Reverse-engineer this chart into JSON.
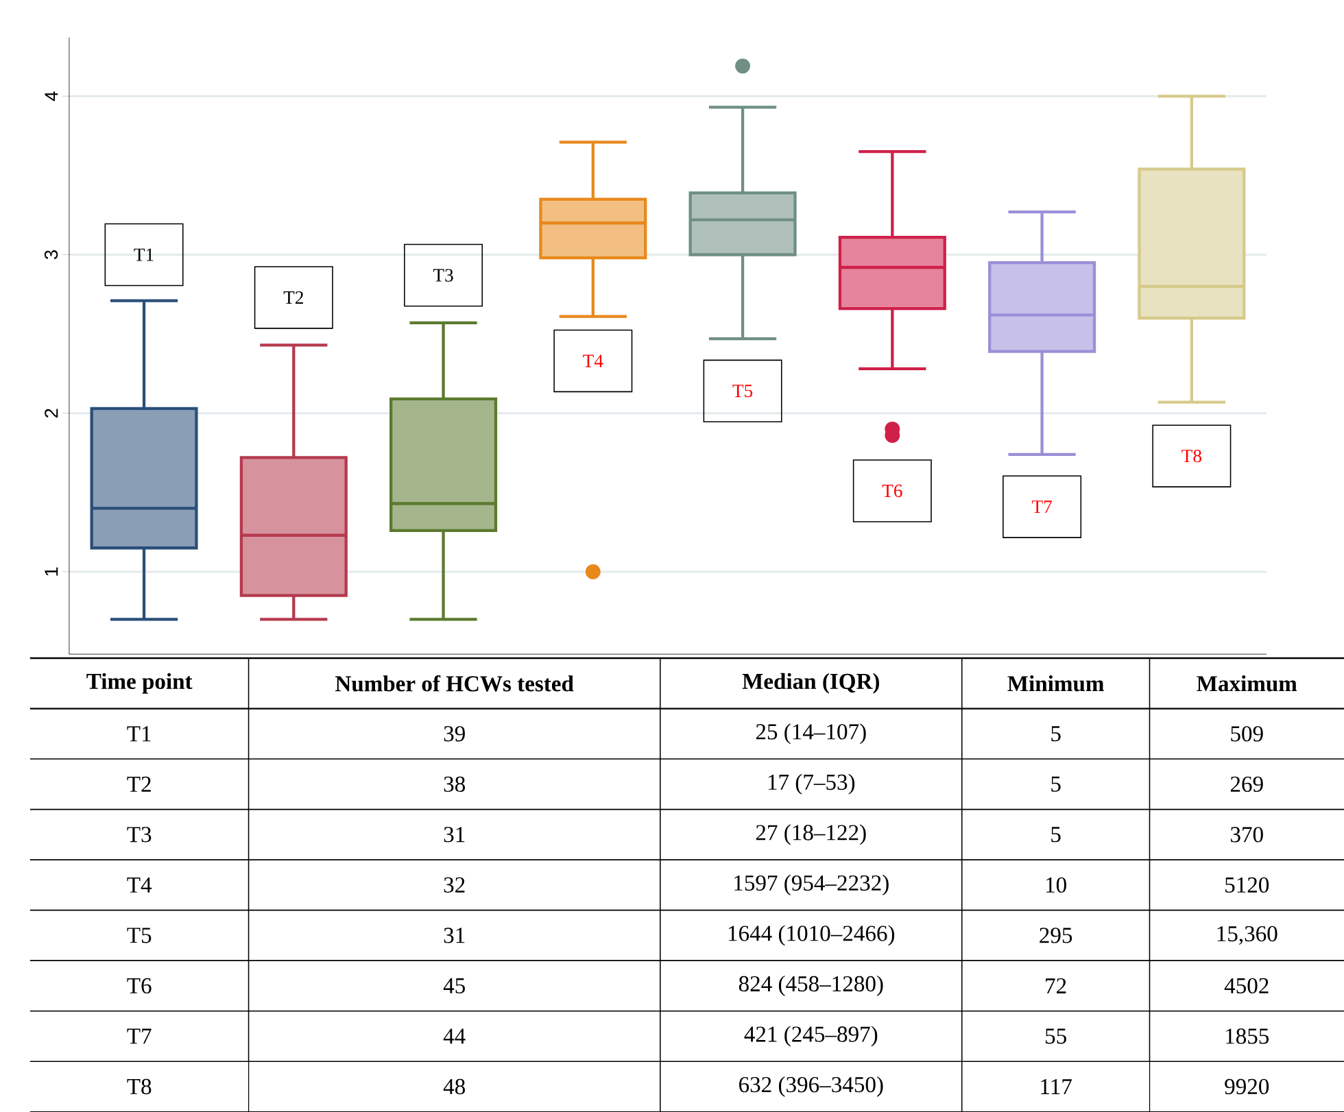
{
  "chart_data": {
    "type": "box",
    "categories": [
      null,
      null,
      null,
      null,
      null,
      null,
      null,
      null
    ],
    "colors": [
      "#2a4f7a",
      "#b53a4e",
      "#5b7a2f",
      "#e8891c",
      "#6f8f85",
      "#d0204a",
      "#9a8fd8",
      "#d6ca8c"
    ],
    "boxes": [
      {
        "low": 0.7,
        "q1": 1.15,
        "median": 1.4,
        "q3": 2.03,
        "high": 2.71
      },
      {
        "low": 0.7,
        "q1": 0.85,
        "median": 1.23,
        "q3": 1.72,
        "high": 2.43
      },
      {
        "low": 0.7,
        "q1": 1.26,
        "median": 1.43,
        "q3": 2.09,
        "high": 2.57
      },
      {
        "low": 2.61,
        "q1": 2.98,
        "median": 3.2,
        "q3": 3.35,
        "high": 3.71,
        "outliers": [
          1.0
        ]
      },
      {
        "low": 2.47,
        "q1": 3.0,
        "median": 3.22,
        "q3": 3.39,
        "high": 3.93,
        "outliers": [
          4.19
        ]
      },
      {
        "low": 2.28,
        "q1": 2.66,
        "median": 2.92,
        "q3": 3.11,
        "high": 3.65,
        "outliers": [
          1.86,
          1.9
        ]
      },
      {
        "low": 1.74,
        "q1": 2.39,
        "median": 2.62,
        "q3": 2.95,
        "high": 3.27
      },
      {
        "low": 2.07,
        "q1": 2.6,
        "median": 2.8,
        "q3": 3.54,
        "high": 4.0
      }
    ],
    "ylim": [
      0.48,
      4.37
    ],
    "yticks": [
      1,
      2,
      3,
      4
    ],
    "grid": "y",
    "tick_labels": "y",
    "annotations": [
      "T1",
      "T2",
      "T3",
      "T4",
      "T5",
      "T6",
      "T7",
      "T8",
      "Time point",
      "Number of HCWs tested",
      "Median (IQR)",
      "Minimum",
      "Maximum",
      "T1",
      "39",
      "25 (14–107)",
      "5",
      "509",
      "T2",
      "38",
      "17 (7–53)",
      "5",
      "269",
      "T3",
      "31",
      "27 (18–122)",
      "5",
      "370",
      "T4",
      "32",
      "1597 (954–2232)",
      "10",
      "5120",
      "T5",
      "31",
      "1644 (1010–2466)",
      "295",
      "15,360",
      "T6",
      "45",
      "824 (458–1280)",
      "72",
      "4502",
      "T7",
      "44",
      "421 (245–897)",
      "55",
      "1855",
      "T8",
      "48",
      "632 (396–3450)",
      "117",
      "9920"
    ]
  }
}
